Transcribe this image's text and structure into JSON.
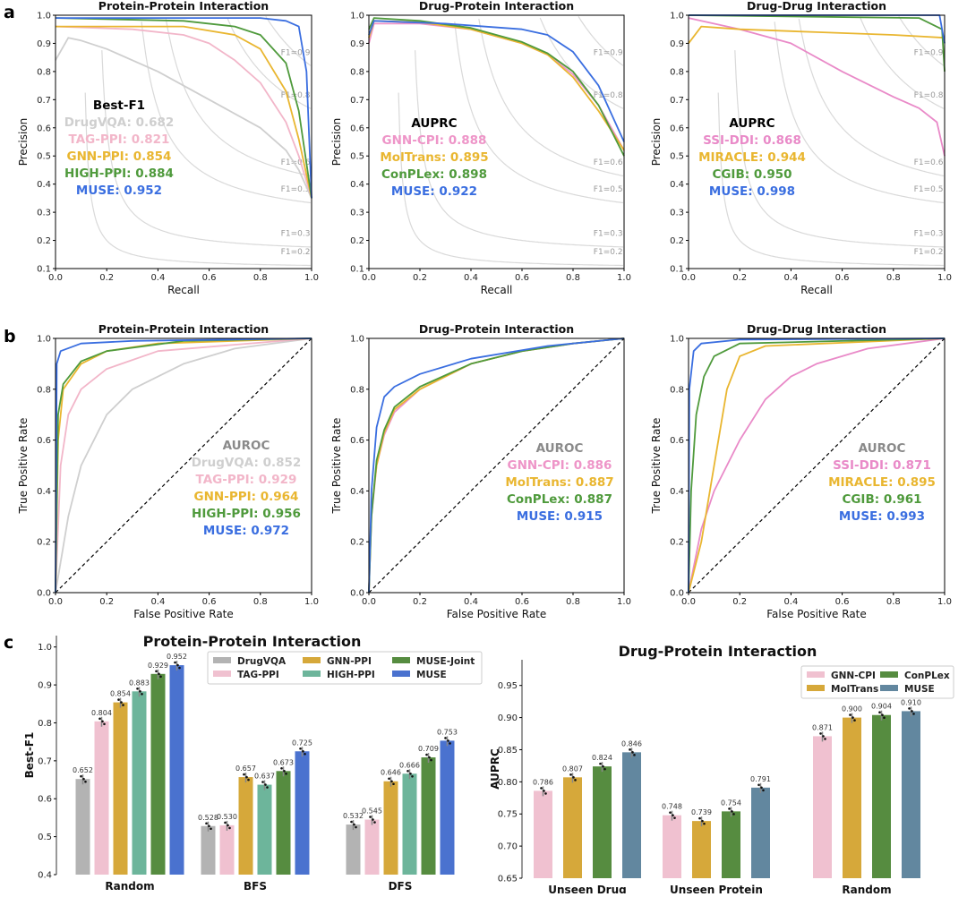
{
  "panel_labels": [
    "a",
    "b",
    "c"
  ],
  "colors": {
    "DrugVQA_line": "#cfcfcf",
    "TAG-PPI_line": "#f2b6c9",
    "GNN-PPI_line": "#e9b630",
    "HIGH-PPI_line": "#4f9a3c",
    "MUSE_line": "#3a6ee0",
    "GNN-CPI_line": "#ee95c8",
    "MolTrans_line": "#e9b630",
    "ConPLex_line": "#4f9a3c",
    "SSI-DDI_line": "#e98ac8",
    "MIRACLE_line": "#e9b630",
    "CGIB_line": "#4f9a3c",
    "iso_f1": "#d9d9d9"
  },
  "chart_data": [
    {
      "type": "line",
      "panel": "a",
      "title": "Protein-Protein Interaction",
      "xlabel": "Recall",
      "ylabel": "Precision",
      "xlim": [
        0,
        1
      ],
      "ylim": [
        0.1,
        1.0
      ],
      "xticks": [
        "0.0",
        "0.2",
        "0.4",
        "0.6",
        "0.8",
        "1.0"
      ],
      "yticks": [
        "0.1",
        "0.2",
        "0.3",
        "0.4",
        "0.5",
        "0.6",
        "0.7",
        "0.8",
        "0.9",
        "1.0"
      ],
      "iso_f1": [
        0.2,
        0.3,
        0.5,
        0.6,
        0.8,
        0.9
      ],
      "iso_labels": [
        "F1=0.2",
        "F1=0.3",
        "F1=0.5",
        "F1=0.6",
        "F1=0.8",
        "F1=0.9"
      ],
      "annotation_title": "Best-F1",
      "annotations": [
        "DrugVQA: 0.682",
        "TAG-PPI: 0.821",
        "GNN-PPI: 0.854",
        "HIGH-PPI: 0.884",
        "MUSE: 0.952"
      ],
      "series": [
        {
          "name": "DrugVQA",
          "color": "#cfcfcf",
          "x": [
            0,
            0.05,
            0.1,
            0.2,
            0.4,
            0.6,
            0.8,
            0.9,
            0.95,
            1
          ],
          "y": [
            0.84,
            0.92,
            0.91,
            0.88,
            0.8,
            0.7,
            0.6,
            0.52,
            0.45,
            0.35
          ]
        },
        {
          "name": "TAG-PPI",
          "color": "#f2b6c9",
          "x": [
            0,
            0.3,
            0.5,
            0.6,
            0.7,
            0.8,
            0.9,
            0.95,
            1
          ],
          "y": [
            0.96,
            0.95,
            0.93,
            0.9,
            0.84,
            0.76,
            0.62,
            0.5,
            0.35
          ]
        },
        {
          "name": "GNN-PPI",
          "color": "#e9b630",
          "x": [
            0,
            0.5,
            0.7,
            0.8,
            0.9,
            0.95,
            1
          ],
          "y": [
            0.96,
            0.96,
            0.93,
            0.88,
            0.73,
            0.56,
            0.35
          ]
        },
        {
          "name": "HIGH-PPI",
          "color": "#4f9a3c",
          "x": [
            0,
            0.5,
            0.7,
            0.8,
            0.9,
            0.95,
            1
          ],
          "y": [
            0.99,
            0.98,
            0.96,
            0.93,
            0.83,
            0.66,
            0.35
          ]
        },
        {
          "name": "MUSE",
          "color": "#3a6ee0",
          "x": [
            0,
            0.8,
            0.9,
            0.95,
            0.98,
            1
          ],
          "y": [
            0.99,
            0.99,
            0.98,
            0.96,
            0.8,
            0.35
          ]
        }
      ]
    },
    {
      "type": "line",
      "panel": "a",
      "title": "Drug-Protein Interaction",
      "xlabel": "Recall",
      "ylabel": "Precision",
      "xlim": [
        0,
        1
      ],
      "ylim": [
        0.1,
        1.0
      ],
      "xticks": [
        "0.0",
        "0.2",
        "0.4",
        "0.6",
        "0.8",
        "1.0"
      ],
      "yticks": [
        "0.1",
        "0.2",
        "0.3",
        "0.4",
        "0.5",
        "0.6",
        "0.7",
        "0.8",
        "0.9",
        "1.0"
      ],
      "iso_f1": [
        0.2,
        0.3,
        0.5,
        0.6,
        0.8,
        0.9
      ],
      "iso_labels": [
        "F1=0.2",
        "F1=0.3",
        "F1=0.5",
        "F1=0.6",
        "F1=0.8",
        "F1=0.9"
      ],
      "annotation_title": "AUPRC",
      "annotations": [
        "GNN-CPI: 0.888",
        "MolTrans: 0.895",
        "ConPLex: 0.898",
        "MUSE: 0.922"
      ],
      "series": [
        {
          "name": "GNN-CPI",
          "color": "#ee95c8",
          "x": [
            0,
            0.02,
            0.2,
            0.4,
            0.6,
            0.7,
            0.8,
            0.9,
            1
          ],
          "y": [
            0.9,
            0.97,
            0.97,
            0.95,
            0.9,
            0.86,
            0.79,
            0.68,
            0.52
          ]
        },
        {
          "name": "MolTrans",
          "color": "#e9b630",
          "x": [
            0,
            0.02,
            0.2,
            0.4,
            0.6,
            0.7,
            0.8,
            0.9,
            1
          ],
          "y": [
            0.92,
            0.98,
            0.975,
            0.95,
            0.9,
            0.86,
            0.78,
            0.66,
            0.52
          ]
        },
        {
          "name": "ConPLex",
          "color": "#4f9a3c",
          "x": [
            0,
            0.02,
            0.2,
            0.4,
            0.6,
            0.7,
            0.8,
            0.9,
            1
          ],
          "y": [
            0.95,
            0.99,
            0.98,
            0.955,
            0.905,
            0.865,
            0.8,
            0.68,
            0.5
          ]
        },
        {
          "name": "MUSE",
          "color": "#3a6ee0",
          "x": [
            0,
            0.02,
            0.3,
            0.6,
            0.7,
            0.8,
            0.9,
            1
          ],
          "y": [
            0.93,
            0.98,
            0.97,
            0.95,
            0.93,
            0.87,
            0.75,
            0.55
          ]
        }
      ]
    },
    {
      "type": "line",
      "panel": "a",
      "title": "Drug-Drug Interaction",
      "xlabel": "Recall",
      "ylabel": "Precision",
      "xlim": [
        0,
        1
      ],
      "ylim": [
        0.1,
        1.0
      ],
      "xticks": [
        "0.0",
        "0.2",
        "0.4",
        "0.6",
        "0.8",
        "1.0"
      ],
      "yticks": [
        "0.1",
        "0.2",
        "0.3",
        "0.4",
        "0.5",
        "0.6",
        "0.7",
        "0.8",
        "0.9",
        "1.0"
      ],
      "iso_f1": [
        0.2,
        0.3,
        0.5,
        0.6,
        0.8,
        0.9
      ],
      "iso_labels": [
        "F1=0.2",
        "F1=0.3",
        "F1=0.5",
        "F1=0.6",
        "F1=0.8",
        "F1=0.9"
      ],
      "annotation_title": "AUPRC",
      "annotations": [
        "SSI-DDI: 0.868",
        "MIRACLE: 0.944",
        "CGIB: 0.950",
        "MUSE: 0.998"
      ],
      "series": [
        {
          "name": "SSI-DDI",
          "color": "#e98ac8",
          "x": [
            0,
            0.2,
            0.4,
            0.6,
            0.8,
            0.9,
            0.97,
            1
          ],
          "y": [
            0.99,
            0.95,
            0.9,
            0.8,
            0.71,
            0.67,
            0.62,
            0.5
          ]
        },
        {
          "name": "MIRACLE",
          "color": "#e9b630",
          "x": [
            0,
            0.05,
            0.2,
            0.5,
            0.8,
            1
          ],
          "y": [
            0.9,
            0.96,
            0.95,
            0.94,
            0.93,
            0.92
          ]
        },
        {
          "name": "CGIB",
          "color": "#4f9a3c",
          "x": [
            0,
            0.9,
            0.99,
            1
          ],
          "y": [
            1,
            0.99,
            0.95,
            0.8
          ]
        },
        {
          "name": "MUSE",
          "color": "#3a6ee0",
          "x": [
            0,
            0.98,
            1
          ],
          "y": [
            1,
            1,
            0.9
          ]
        }
      ]
    },
    {
      "type": "line",
      "panel": "b",
      "title": "Protein-Protein Interaction",
      "xlabel": "False Positive Rate",
      "ylabel": "True Positive Rate",
      "xlim": [
        0,
        1
      ],
      "ylim": [
        0,
        1
      ],
      "xticks": [
        "0.0",
        "0.2",
        "0.4",
        "0.6",
        "0.8",
        "1.0"
      ],
      "yticks": [
        "0.0",
        "0.2",
        "0.4",
        "0.6",
        "0.8",
        "1.0"
      ],
      "diagonal": true,
      "annotation_title": "AUROC",
      "annotations": [
        "DrugVQA: 0.852",
        "TAG-PPI: 0.929",
        "GNN-PPI: 0.964",
        "HIGH-PPI: 0.956",
        "MUSE: 0.972"
      ],
      "series": [
        {
          "name": "DrugVQA",
          "color": "#cfcfcf",
          "x": [
            0,
            0.05,
            0.1,
            0.2,
            0.3,
            0.5,
            0.7,
            1
          ],
          "y": [
            0,
            0.3,
            0.5,
            0.7,
            0.8,
            0.9,
            0.96,
            1
          ]
        },
        {
          "name": "TAG-PPI",
          "color": "#f2b6c9",
          "x": [
            0,
            0.02,
            0.05,
            0.1,
            0.2,
            0.4,
            1
          ],
          "y": [
            0,
            0.5,
            0.7,
            0.8,
            0.88,
            0.95,
            1
          ]
        },
        {
          "name": "GNN-PPI",
          "color": "#e9b630",
          "x": [
            0,
            0.01,
            0.03,
            0.1,
            0.2,
            0.4,
            1
          ],
          "y": [
            0,
            0.6,
            0.8,
            0.9,
            0.95,
            0.98,
            1
          ]
        },
        {
          "name": "HIGH-PPI",
          "color": "#4f9a3c",
          "x": [
            0,
            0.01,
            0.03,
            0.1,
            0.2,
            0.5,
            1
          ],
          "y": [
            0,
            0.7,
            0.82,
            0.91,
            0.95,
            0.99,
            1
          ]
        },
        {
          "name": "MUSE",
          "color": "#3a6ee0",
          "x": [
            0,
            0.005,
            0.02,
            0.1,
            0.3,
            1
          ],
          "y": [
            0,
            0.9,
            0.95,
            0.98,
            0.99,
            1
          ]
        }
      ]
    },
    {
      "type": "line",
      "panel": "b",
      "title": "Drug-Protein Interaction",
      "xlabel": "False Positive Rate",
      "ylabel": "True Positive Rate",
      "xlim": [
        0,
        1
      ],
      "ylim": [
        0,
        1
      ],
      "xticks": [
        "0.0",
        "0.2",
        "0.4",
        "0.6",
        "0.8",
        "1.0"
      ],
      "yticks": [
        "0.0",
        "0.2",
        "0.4",
        "0.6",
        "0.8",
        "1.0"
      ],
      "diagonal": true,
      "annotation_title": "AUROC",
      "annotations": [
        "GNN-CPI: 0.886",
        "MolTrans: 0.887",
        "ConPLex: 0.887",
        "MUSE: 0.915"
      ],
      "series": [
        {
          "name": "GNN-CPI",
          "color": "#ee95c8",
          "x": [
            0,
            0.01,
            0.03,
            0.06,
            0.1,
            0.2,
            0.4,
            0.6,
            0.8,
            1
          ],
          "y": [
            0,
            0.3,
            0.5,
            0.62,
            0.71,
            0.8,
            0.9,
            0.95,
            0.98,
            1
          ]
        },
        {
          "name": "MolTrans",
          "color": "#e9b630",
          "x": [
            0,
            0.01,
            0.03,
            0.06,
            0.1,
            0.2,
            0.4,
            0.6,
            0.8,
            1
          ],
          "y": [
            0,
            0.32,
            0.5,
            0.63,
            0.72,
            0.8,
            0.9,
            0.95,
            0.98,
            1
          ]
        },
        {
          "name": "ConPLex",
          "color": "#4f9a3c",
          "x": [
            0,
            0.01,
            0.03,
            0.06,
            0.1,
            0.2,
            0.4,
            0.6,
            0.8,
            1
          ],
          "y": [
            0,
            0.3,
            0.52,
            0.64,
            0.73,
            0.81,
            0.9,
            0.95,
            0.98,
            1
          ]
        },
        {
          "name": "MUSE",
          "color": "#3a6ee0",
          "x": [
            0,
            0.01,
            0.03,
            0.06,
            0.1,
            0.2,
            0.4,
            0.7,
            1
          ],
          "y": [
            0,
            0.4,
            0.65,
            0.77,
            0.81,
            0.86,
            0.92,
            0.97,
            1
          ]
        }
      ]
    },
    {
      "type": "line",
      "panel": "b",
      "title": "Drug-Drug Interaction",
      "xlabel": "False Positive Rate",
      "ylabel": "True Positive Rate",
      "xlim": [
        0,
        1
      ],
      "ylim": [
        0,
        1
      ],
      "xticks": [
        "0.0",
        "0.2",
        "0.4",
        "0.6",
        "0.8",
        "1.0"
      ],
      "yticks": [
        "0.0",
        "0.2",
        "0.4",
        "0.6",
        "0.8",
        "1.0"
      ],
      "diagonal": true,
      "annotation_title": "AUROC",
      "annotations": [
        "SSI-DDI: 0.871",
        "MIRACLE: 0.895",
        "CGIB: 0.961",
        "MUSE: 0.993"
      ],
      "series": [
        {
          "name": "SSI-DDI",
          "color": "#e98ac8",
          "x": [
            0,
            0.05,
            0.1,
            0.2,
            0.3,
            0.4,
            0.5,
            0.7,
            1
          ],
          "y": [
            0,
            0.25,
            0.4,
            0.6,
            0.76,
            0.85,
            0.9,
            0.96,
            1
          ]
        },
        {
          "name": "MIRACLE",
          "color": "#e9b630",
          "x": [
            0,
            0.05,
            0.1,
            0.15,
            0.2,
            0.3,
            1
          ],
          "y": [
            0,
            0.2,
            0.5,
            0.8,
            0.93,
            0.97,
            1
          ]
        },
        {
          "name": "CGIB",
          "color": "#4f9a3c",
          "x": [
            0,
            0.01,
            0.03,
            0.06,
            0.1,
            0.2,
            1
          ],
          "y": [
            0,
            0.4,
            0.7,
            0.85,
            0.93,
            0.98,
            1
          ]
        },
        {
          "name": "MUSE",
          "color": "#3a6ee0",
          "x": [
            0,
            0.003,
            0.02,
            0.05,
            0.2,
            1
          ],
          "y": [
            0,
            0.8,
            0.95,
            0.98,
            0.995,
            1
          ]
        }
      ]
    },
    {
      "type": "bar",
      "panel": "c",
      "title": "Protein-Protein Interaction",
      "ylabel": "Best-F1",
      "ylim": [
        0.4,
        1.03
      ],
      "yticks": [
        "0.4",
        "0.5",
        "0.6",
        "0.7",
        "0.8",
        "0.9",
        "1.0"
      ],
      "categories": [
        "Random",
        "BFS",
        "DFS"
      ],
      "legend_position": "top-right",
      "series": [
        {
          "name": "DrugVQA",
          "color": "#b3b3b3",
          "values": [
            0.652,
            0.528,
            0.532
          ],
          "labels": [
            "0.652",
            "0.528",
            "0.532"
          ]
        },
        {
          "name": "TAG-PPI",
          "color": "#f0c1d0",
          "values": [
            0.804,
            0.53,
            0.545
          ],
          "labels": [
            "0.804",
            "0.530",
            "0.545"
          ]
        },
        {
          "name": "GNN-PPI",
          "color": "#d6a83a",
          "values": [
            0.854,
            0.657,
            0.646
          ],
          "labels": [
            "0.854",
            "0.657",
            "0.646"
          ]
        },
        {
          "name": "HIGH-PPI",
          "color": "#6db59b",
          "values": [
            0.883,
            0.637,
            0.666
          ],
          "labels": [
            "0.883",
            "0.637",
            "0.666"
          ]
        },
        {
          "name": "MUSE-Joint",
          "color": "#568c40",
          "values": [
            0.929,
            0.673,
            0.709
          ],
          "labels": [
            "0.929",
            "0.673",
            "0.709"
          ]
        },
        {
          "name": "MUSE",
          "color": "#4a72cf",
          "values": [
            0.952,
            0.725,
            0.753
          ],
          "labels": [
            "0.952",
            "0.725",
            "0.753"
          ]
        }
      ]
    },
    {
      "type": "bar",
      "panel": "c",
      "title": "Drug-Protein Interaction",
      "ylabel": "AUPRC",
      "ylim": [
        0.65,
        0.99
      ],
      "yticks": [
        "0.65",
        "0.70",
        "0.75",
        "0.80",
        "0.85",
        "0.90",
        "0.95"
      ],
      "categories": [
        "Unseen Drug",
        "Unseen Protein",
        "Random"
      ],
      "legend_position": "top-right",
      "series": [
        {
          "name": "GNN-CPI",
          "color": "#f0c1d0",
          "values": [
            0.786,
            0.748,
            0.871
          ],
          "labels": [
            "0.786",
            "0.748",
            "0.871"
          ]
        },
        {
          "name": "MolTrans",
          "color": "#d6a83a",
          "values": [
            0.807,
            0.739,
            0.9
          ],
          "labels": [
            "0.807",
            "0.739",
            "0.900"
          ]
        },
        {
          "name": "ConPLex",
          "color": "#568c40",
          "values": [
            0.824,
            0.754,
            0.904
          ],
          "labels": [
            "0.824",
            "0.754",
            "0.904"
          ]
        },
        {
          "name": "MUSE",
          "color": "#62879f",
          "values": [
            0.846,
            0.791,
            0.91
          ],
          "labels": [
            "0.846",
            "0.791",
            "0.910"
          ]
        }
      ]
    }
  ]
}
